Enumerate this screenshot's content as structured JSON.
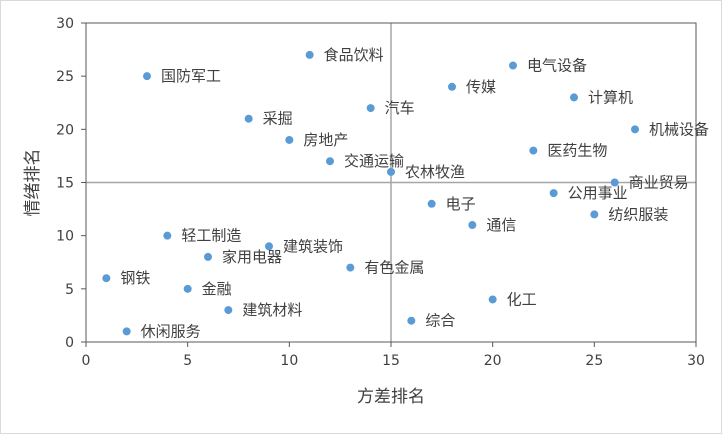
{
  "chart_data": {
    "type": "scatter",
    "xlabel": "方差排名",
    "ylabel": "情绪排名",
    "xlim": [
      0,
      30
    ],
    "ylim": [
      0,
      30
    ],
    "xticks": [
      0,
      5,
      10,
      15,
      20,
      25,
      30
    ],
    "yticks": [
      0,
      5,
      10,
      15,
      20,
      25,
      30
    ],
    "grid": false,
    "legend": "none",
    "point_color": "#5b9bd5",
    "reference_lines": {
      "x": 15,
      "y": 15
    },
    "points": [
      {
        "label": "食品饮料",
        "x": 11,
        "y": 27
      },
      {
        "label": "国防军工",
        "x": 3,
        "y": 25
      },
      {
        "label": "电气设备",
        "x": 21,
        "y": 26
      },
      {
        "label": "传媒",
        "x": 18,
        "y": 24
      },
      {
        "label": "计算机",
        "x": 24,
        "y": 23
      },
      {
        "label": "汽车",
        "x": 14,
        "y": 22
      },
      {
        "label": "采掘",
        "x": 8,
        "y": 21
      },
      {
        "label": "机械设备",
        "x": 27,
        "y": 20
      },
      {
        "label": "房地产",
        "x": 10,
        "y": 19
      },
      {
        "label": "医药生物",
        "x": 22,
        "y": 18
      },
      {
        "label": "交通运输",
        "x": 12,
        "y": 17
      },
      {
        "label": "农林牧渔",
        "x": 15,
        "y": 16
      },
      {
        "label": "商业贸易",
        "x": 26,
        "y": 15
      },
      {
        "label": "公用事业",
        "x": 23,
        "y": 14
      },
      {
        "label": "电子",
        "x": 17,
        "y": 13
      },
      {
        "label": "纺织服装",
        "x": 25,
        "y": 12
      },
      {
        "label": "通信",
        "x": 19,
        "y": 11
      },
      {
        "label": "轻工制造",
        "x": 4,
        "y": 10
      },
      {
        "label": "建筑装饰",
        "x": 9,
        "y": 9
      },
      {
        "label": "家用电器",
        "x": 6,
        "y": 8
      },
      {
        "label": "有色金属",
        "x": 13,
        "y": 7
      },
      {
        "label": "钢铁",
        "x": 1,
        "y": 6
      },
      {
        "label": "金融",
        "x": 5,
        "y": 5
      },
      {
        "label": "化工",
        "x": 20,
        "y": 4
      },
      {
        "label": "建筑材料",
        "x": 7,
        "y": 3
      },
      {
        "label": "综合",
        "x": 16,
        "y": 2
      },
      {
        "label": "休闲服务",
        "x": 2,
        "y": 1
      }
    ]
  }
}
